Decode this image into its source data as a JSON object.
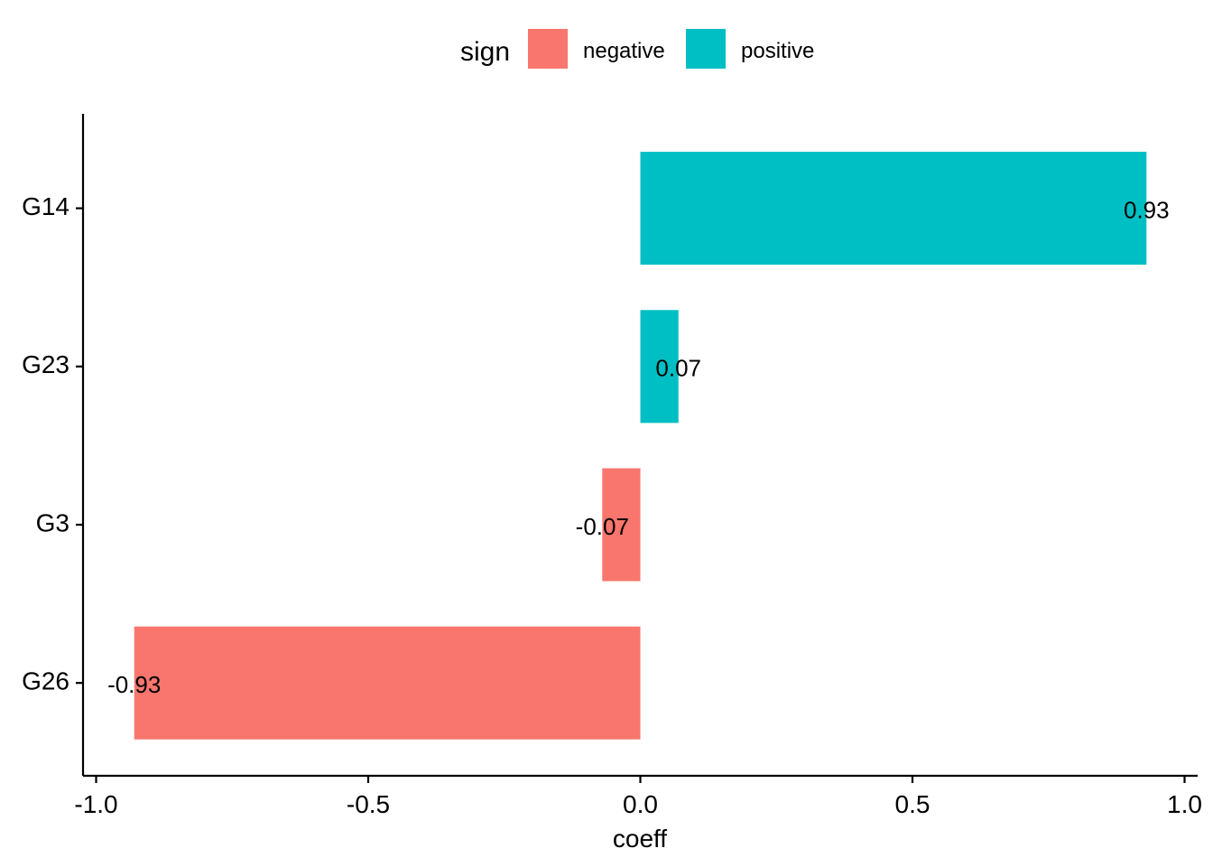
{
  "chart_data": {
    "type": "bar",
    "orientation": "horizontal",
    "categories": [
      "G14",
      "G23",
      "G3",
      "G26"
    ],
    "values": [
      0.93,
      0.07,
      -0.07,
      -0.93
    ],
    "data_labels": [
      "0.93",
      "0.07",
      "-0.07",
      "-0.93"
    ],
    "fill_group": [
      "positive",
      "positive",
      "negative",
      "negative"
    ],
    "xlabel": "coeff",
    "ylabel": "",
    "xlim": [
      -1.02,
      1.02
    ],
    "x_ticks": [
      -1.0,
      -0.5,
      0.0,
      0.5,
      1.0
    ],
    "x_tick_labels": [
      "-1.0",
      "-0.5",
      "0.0",
      "0.5",
      "1.0"
    ],
    "grid": false,
    "legend": {
      "position": "top",
      "title": "sign",
      "entries": [
        {
          "label": "negative",
          "color": "#F8766D"
        },
        {
          "label": "positive",
          "color": "#00BFC4"
        }
      ]
    }
  }
}
